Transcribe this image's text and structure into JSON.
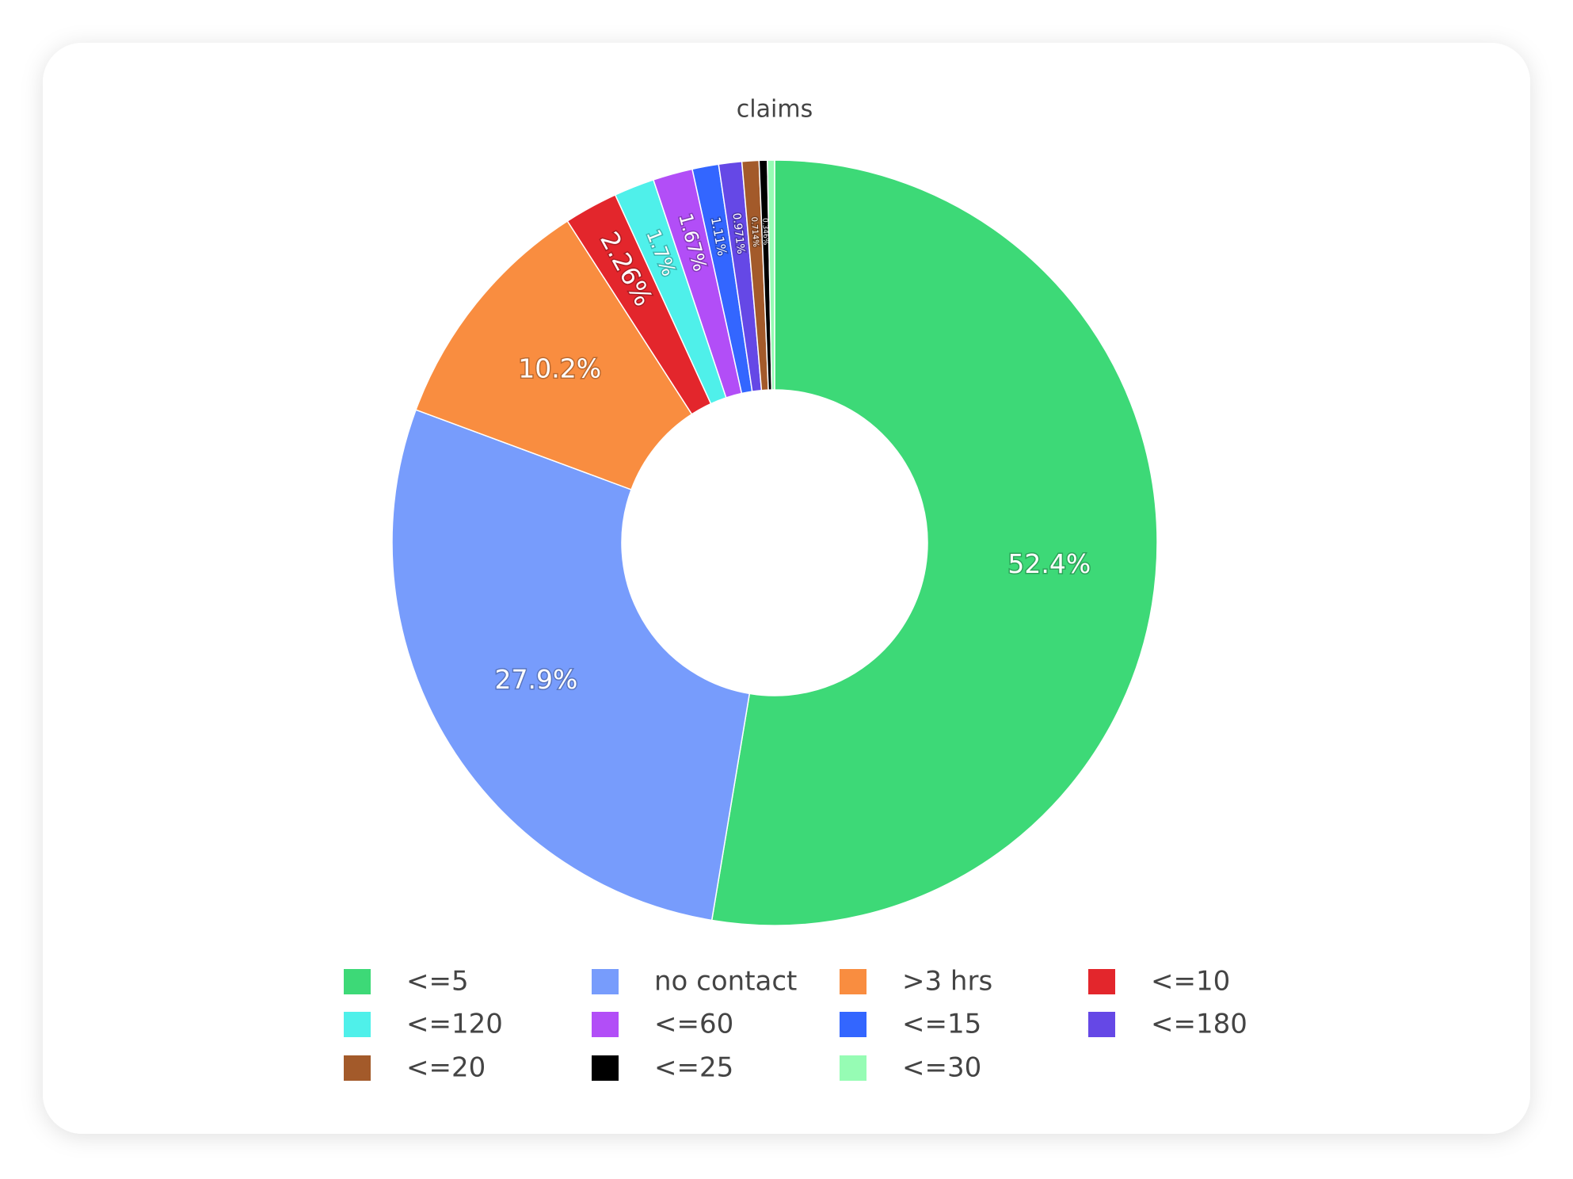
{
  "chart_data": {
    "type": "donut",
    "title": "claims",
    "categories": [
      "<=5",
      "no contact",
      ">3 hrs",
      "<=10",
      "<=120",
      "<=60",
      "<=15",
      "<=180",
      "<=20",
      "<=25",
      "<=30"
    ],
    "values": [
      52.4,
      27.9,
      10.2,
      2.26,
      1.7,
      1.67,
      1.11,
      0.971,
      0.714,
      0.346,
      0.3
    ],
    "value_labels": [
      "52.4%",
      "27.9%",
      "10.2%",
      "2.26%",
      "1.7%",
      "1.67%",
      "1.11%",
      "0.971%",
      "0.714%",
      "0.346%",
      null
    ],
    "colors": [
      "#3dd977",
      "#779cfc",
      "#f98d40",
      "#e3262c",
      "#4ff0ea",
      "#b24ef7",
      "#3366ff",
      "#6548e6",
      "#a35a2a",
      "#000000",
      "#96fcb4"
    ],
    "direction": "clockwise",
    "legend": "bottom"
  }
}
